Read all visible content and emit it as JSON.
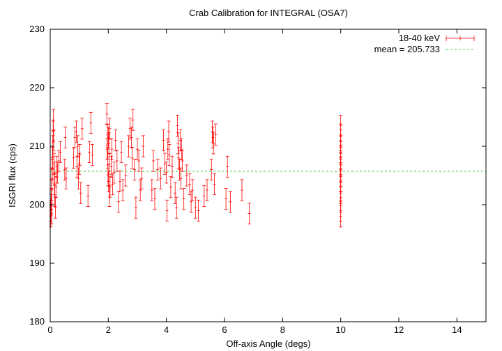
{
  "chart_data": {
    "type": "scatter",
    "title": "Crab Calibration for INTEGRAL (OSA7)",
    "xlabel": "Off-axis Angle (degs)",
    "ylabel": "ISGRI flux (cps)",
    "xlim": [
      0,
      15
    ],
    "ylim": [
      180,
      230
    ],
    "xticks": [
      "0",
      "2",
      "4",
      "6",
      "8",
      "10",
      "12",
      "14"
    ],
    "yticks": [
      "180",
      "190",
      "200",
      "210",
      "220",
      "230"
    ],
    "grid": false,
    "legend_position": "top-right",
    "series": [
      {
        "name": "18-40 keV",
        "style": "points-with-errorbars",
        "color": "#ff0000",
        "error": 1.8,
        "points": [
          [
            0.02,
            198.0
          ],
          [
            0.02,
            199.0
          ],
          [
            0.03,
            200.0
          ],
          [
            0.04,
            201.0
          ],
          [
            0.05,
            198.5
          ],
          [
            0.05,
            202.5
          ],
          [
            0.06,
            204.5
          ],
          [
            0.07,
            206.0
          ],
          [
            0.08,
            208.0
          ],
          [
            0.09,
            210.0
          ],
          [
            0.1,
            212.5
          ],
          [
            0.11,
            214.5
          ],
          [
            0.12,
            211.0
          ],
          [
            0.13,
            207.0
          ],
          [
            0.14,
            205.5
          ],
          [
            0.15,
            203.5
          ],
          [
            0.16,
            201.5
          ],
          [
            0.18,
            199.5
          ],
          [
            0.2,
            203.0
          ],
          [
            0.22,
            206.5
          ],
          [
            0.25,
            205.5
          ],
          [
            0.3,
            207.5
          ],
          [
            0.35,
            209.0
          ],
          [
            0.5,
            206.0
          ],
          [
            0.52,
            211.5
          ],
          [
            0.55,
            204.5
          ],
          [
            0.8,
            208.0
          ],
          [
            0.85,
            211.5
          ],
          [
            0.9,
            212.5
          ],
          [
            0.92,
            206.5
          ],
          [
            0.95,
            210.0
          ],
          [
            0.97,
            204.5
          ],
          [
            1.0,
            207.0
          ],
          [
            1.02,
            208.5
          ],
          [
            1.05,
            202.0
          ],
          [
            1.1,
            213.0
          ],
          [
            1.3,
            201.5
          ],
          [
            1.35,
            209.0
          ],
          [
            1.4,
            214.0
          ],
          [
            1.45,
            208.5
          ],
          [
            1.95,
            215.5
          ],
          [
            1.96,
            209.5
          ],
          [
            1.97,
            212.0
          ],
          [
            1.98,
            208.0
          ],
          [
            1.99,
            205.0
          ],
          [
            2.0,
            211.5
          ],
          [
            2.01,
            204.0
          ],
          [
            2.02,
            210.5
          ],
          [
            2.03,
            207.0
          ],
          [
            2.04,
            201.5
          ],
          [
            2.05,
            213.0
          ],
          [
            2.06,
            203.0
          ],
          [
            2.1,
            206.5
          ],
          [
            2.12,
            209.5
          ],
          [
            2.15,
            203.5
          ],
          [
            2.2,
            205.5
          ],
          [
            2.25,
            211.0
          ],
          [
            2.3,
            207.5
          ],
          [
            2.35,
            200.5
          ],
          [
            2.4,
            204.0
          ],
          [
            2.45,
            209.0
          ],
          [
            2.5,
            202.5
          ],
          [
            2.6,
            205.0
          ],
          [
            2.7,
            210.0
          ],
          [
            2.75,
            213.0
          ],
          [
            2.8,
            211.5
          ],
          [
            2.82,
            208.0
          ],
          [
            2.85,
            214.5
          ],
          [
            2.9,
            206.0
          ],
          [
            2.95,
            199.5
          ],
          [
            3.0,
            209.5
          ],
          [
            3.05,
            207.5
          ],
          [
            3.1,
            202.5
          ],
          [
            3.15,
            204.5
          ],
          [
            3.2,
            210.0
          ],
          [
            3.5,
            202.5
          ],
          [
            3.55,
            207.5
          ],
          [
            3.6,
            201.0
          ],
          [
            3.7,
            206.0
          ],
          [
            3.8,
            204.5
          ],
          [
            3.9,
            211.0
          ],
          [
            3.95,
            207.0
          ],
          [
            4.0,
            205.5
          ],
          [
            4.02,
            199.0
          ],
          [
            4.05,
            209.5
          ],
          [
            4.08,
            212.5
          ],
          [
            4.1,
            208.5
          ],
          [
            4.15,
            203.0
          ],
          [
            4.2,
            206.5
          ],
          [
            4.3,
            202.0
          ],
          [
            4.35,
            199.5
          ],
          [
            4.38,
            213.5
          ],
          [
            4.4,
            210.5
          ],
          [
            4.42,
            208.0
          ],
          [
            4.45,
            206.0
          ],
          [
            4.48,
            211.0
          ],
          [
            4.5,
            204.5
          ],
          [
            4.52,
            209.5
          ],
          [
            4.55,
            207.5
          ],
          [
            4.6,
            201.0
          ],
          [
            4.7,
            205.0
          ],
          [
            4.8,
            203.5
          ],
          [
            4.85,
            200.5
          ],
          [
            4.9,
            202.5
          ],
          [
            5.0,
            199.5
          ],
          [
            5.1,
            199.0
          ],
          [
            5.3,
            201.5
          ],
          [
            5.4,
            202.5
          ],
          [
            5.55,
            206.0
          ],
          [
            5.58,
            212.5
          ],
          [
            5.6,
            211.5
          ],
          [
            5.62,
            210.5
          ],
          [
            5.65,
            203.5
          ],
          [
            5.7,
            212.0
          ],
          [
            6.05,
            201.0
          ],
          [
            6.1,
            206.5
          ],
          [
            6.2,
            200.5
          ],
          [
            6.6,
            202.5
          ],
          [
            6.85,
            198.5
          ],
          [
            10.0,
            212.0
          ],
          [
            10.0,
            211.0
          ],
          [
            10.0,
            210.0
          ],
          [
            10.0,
            209.0
          ],
          [
            10.0,
            208.0
          ],
          [
            10.0,
            207.0
          ],
          [
            10.0,
            206.0
          ],
          [
            10.0,
            205.0
          ],
          [
            10.0,
            204.0
          ],
          [
            10.0,
            203.0
          ],
          [
            10.0,
            202.0
          ],
          [
            10.0,
            200.5
          ],
          [
            10.0,
            199.0
          ],
          [
            10.0,
            213.5
          ],
          [
            10.0,
            198.0
          ]
        ]
      },
      {
        "name": "mean = 205.733",
        "style": "dashed-line",
        "color": "#33cc33",
        "y": 205.733
      }
    ]
  }
}
